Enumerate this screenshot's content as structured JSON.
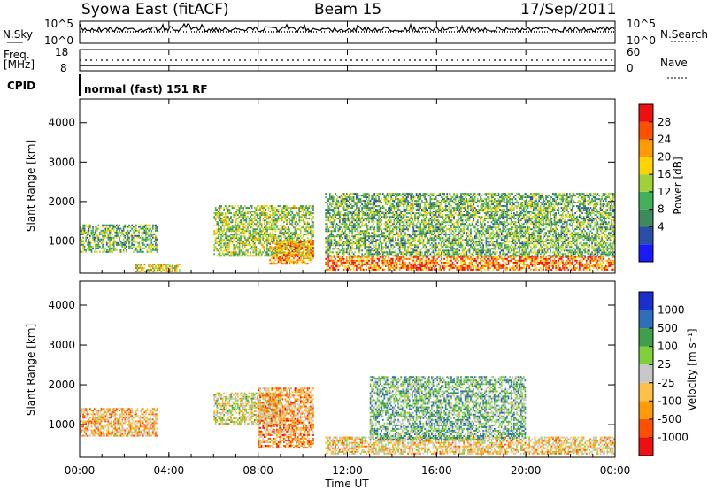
{
  "header": {
    "station": "Syowa East (fitACF)",
    "beam": "Beam 15",
    "date": "17/Sep/2011"
  },
  "noise_panel": {
    "left_label": "N.Sky",
    "right_label": "N.Search",
    "left_ticks": [
      "10^5",
      "10^0"
    ],
    "right_ticks": [
      "10^5",
      "10^0"
    ]
  },
  "freq_panel": {
    "left_label_line1": "Freq.",
    "left_label_line2": "[MHz]",
    "right_label": "Nave",
    "left_ticks": [
      "18",
      "8"
    ],
    "right_ticks": [
      "60",
      "0"
    ]
  },
  "cpid": {
    "label": "CPID",
    "value": "normal (fast) 151 RF"
  },
  "time_axis": {
    "label": "Time UT",
    "ticks": [
      "00:00",
      "04:00",
      "08:00",
      "12:00",
      "16:00",
      "20:00",
      "00:00"
    ]
  },
  "colors": {
    "power_scale": [
      "#1a1aff",
      "#2a4fa8",
      "#3d8a5a",
      "#45b05a",
      "#9fd23a",
      "#ffd400",
      "#ff9a00",
      "#ff5000",
      "#ee1010"
    ],
    "velocity_scale": [
      "#ee1010",
      "#ff5000",
      "#ff9a00",
      "#ffc04a",
      "#c8c8c8",
      "#7fd13b",
      "#3f9f4a",
      "#2d6fb8",
      "#1a2fd0"
    ]
  },
  "chart_data": [
    {
      "type": "heatmap",
      "title": "",
      "xlabel": "Time UT",
      "ylabel": "Slant Range [km]",
      "xlim_hours": [
        0,
        24
      ],
      "ylim": [
        180,
        4600
      ],
      "yticks": [
        "1000",
        "2000",
        "3000",
        "4000"
      ],
      "colorbar": {
        "label": "Power [dB]",
        "ticks": [
          "28",
          "24",
          "20",
          "16",
          "12",
          "8",
          "4"
        ],
        "range": [
          0,
          30
        ]
      },
      "echo_regions": [
        {
          "t": [
            0.0,
            3.5
          ],
          "range": [
            700,
            1400
          ],
          "value": 12
        },
        {
          "t": [
            2.5,
            4.5
          ],
          "range": [
            200,
            400
          ],
          "value": 18
        },
        {
          "t": [
            6.0,
            10.5
          ],
          "range": [
            600,
            1900
          ],
          "value": 14
        },
        {
          "t": [
            8.5,
            10.5
          ],
          "range": [
            400,
            1000
          ],
          "value": 22
        },
        {
          "t": [
            11.0,
            24.0
          ],
          "range": [
            250,
            600
          ],
          "value": 24
        },
        {
          "t": [
            11.0,
            24.0
          ],
          "range": [
            600,
            2200
          ],
          "value": 12
        }
      ]
    },
    {
      "type": "heatmap",
      "title": "",
      "xlabel": "Time UT",
      "ylabel": "Slant Range [km]",
      "xlim_hours": [
        0,
        24
      ],
      "ylim": [
        180,
        4600
      ],
      "yticks": [
        "1000",
        "2000",
        "3000",
        "4000"
      ],
      "colorbar": {
        "label": "Velocity [m s⁻¹]",
        "ticks": [
          "1000",
          "500",
          "100",
          "25",
          "-25",
          "-100",
          "-500",
          "-1000"
        ],
        "range": [
          -1000,
          1000
        ]
      },
      "echo_regions": [
        {
          "t": [
            0.0,
            3.5
          ],
          "range": [
            700,
            1400
          ],
          "value": -300
        },
        {
          "t": [
            6.0,
            9.0
          ],
          "range": [
            1000,
            1800
          ],
          "value": 0
        },
        {
          "t": [
            8.0,
            10.5
          ],
          "range": [
            400,
            1900
          ],
          "value": -400
        },
        {
          "t": [
            11.0,
            24.0
          ],
          "range": [
            250,
            700
          ],
          "value": -200
        },
        {
          "t": [
            13.0,
            20.0
          ],
          "range": [
            600,
            2200
          ],
          "value": 300
        }
      ]
    }
  ]
}
